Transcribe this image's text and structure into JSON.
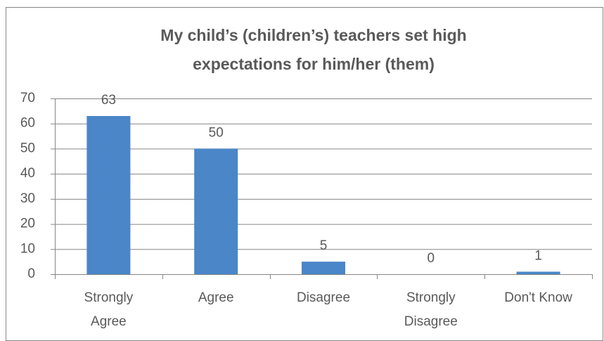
{
  "chart_data": {
    "type": "bar",
    "title": [
      "My child’s (children’s) teachers set high",
      "expectations for him/her (them)"
    ],
    "categories": [
      [
        "Strongly",
        "Agree"
      ],
      [
        "Agree"
      ],
      [
        "Disagree"
      ],
      [
        "Strongly",
        "Disagree"
      ],
      [
        "Don't Know"
      ]
    ],
    "values": [
      63,
      50,
      5,
      0,
      1
    ],
    "color": "#4a86c8",
    "ylim": [
      0,
      70
    ],
    "yticks": [
      0,
      10,
      20,
      30,
      40,
      50,
      60,
      70
    ],
    "grid": true
  }
}
